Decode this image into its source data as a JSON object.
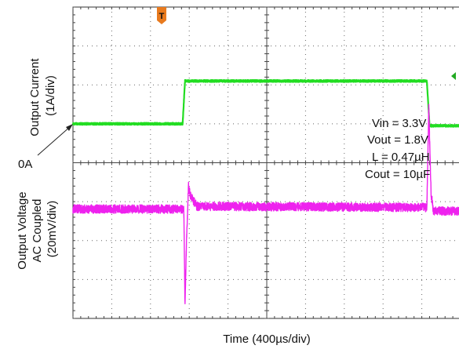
{
  "chart_data": {
    "type": "line",
    "xlabel": "Time (400µs/div)",
    "x_div_unit": "400µs/div",
    "grid": true,
    "divisions": {
      "x": 10,
      "y": 8
    },
    "series": [
      {
        "channel": "current",
        "label_lines": [
          "Output Current",
          "(1A/div)"
        ],
        "color": "#22dd22",
        "zero_label": "0A",
        "x_div": [
          0,
          2.83,
          2.89,
          9.13,
          9.2,
          10
        ],
        "y_div": [
          5.0,
          5.0,
          6.1,
          6.1,
          4.95,
          4.95
        ]
      },
      {
        "channel": "voltage",
        "label_lines": [
          "Output Voltage",
          "AC Coupled",
          "(20mV/div)"
        ],
        "color": "#ee22ee",
        "x_div": [
          0,
          2.86,
          2.89,
          2.93,
          2.98,
          3.03,
          3.2,
          9.13,
          9.18,
          9.24,
          9.3,
          10
        ],
        "y_div": [
          2.81,
          2.81,
          0.3,
          2.0,
          3.4,
          3.15,
          2.88,
          2.85,
          5.4,
          3.2,
          2.76,
          2.76
        ]
      }
    ],
    "annotations": [
      "Vin = 3.3V",
      "Vout = 1.8V",
      "L = 0.47µH",
      "Cout = 10µF"
    ],
    "trigger_marker": "T"
  }
}
